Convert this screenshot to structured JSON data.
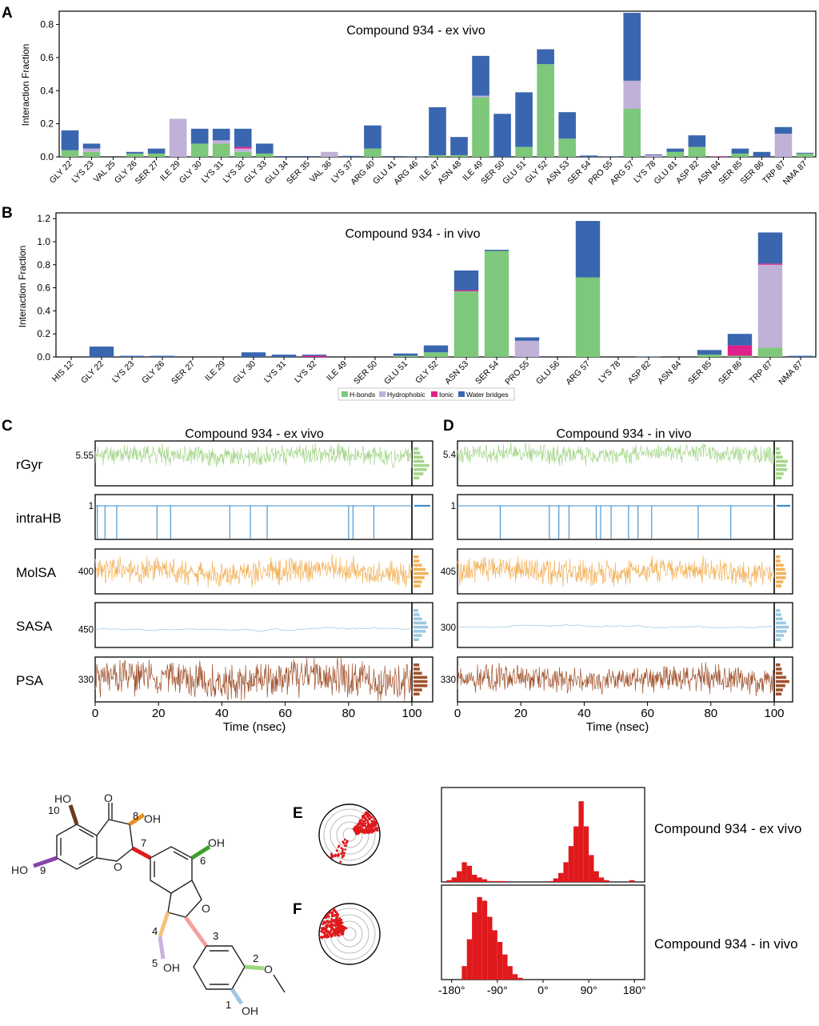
{
  "panel_letters": [
    "A",
    "B",
    "C",
    "D",
    "E",
    "F"
  ],
  "colors": {
    "hbonds": "#7dc87b",
    "hydrophobic": "#c0b1d8",
    "ionic": "#e0208a",
    "water": "#3a66b0",
    "rgyr": "#a5d68a",
    "intrahb": "#3d8fcc",
    "molsa": "#f2b25a",
    "sasa": "#9cc8e2",
    "psa": "#a0522d",
    "dihedral": "#e0191c"
  },
  "legend": {
    "items": [
      {
        "label": "H-bonds",
        "key": "hbonds"
      },
      {
        "label": "Hydrophobic",
        "key": "hydrophobic"
      },
      {
        "label": "Ionic",
        "key": "ionic"
      },
      {
        "label": "Water bridges",
        "key": "water"
      }
    ]
  },
  "chart_data": [
    {
      "id": "A",
      "type": "bar",
      "stacked": true,
      "title": "Compound 934 - ex vivo",
      "ylabel": "Interaction Fraction",
      "ylim": [
        0,
        0.88
      ],
      "yticks": [
        0.0,
        0.2,
        0.4,
        0.6,
        0.8
      ],
      "ytick_labels": [
        "0.0",
        "0.2",
        "0.4",
        "0.6",
        "0.8"
      ],
      "categories": [
        "GLY 22",
        "LYS 23",
        "VAL 25",
        "GLY 26",
        "SER 27",
        "ILE 29",
        "GLY 30",
        "LYS 31",
        "LYS 32",
        "GLY 33",
        "GLU 34",
        "SER 35",
        "VAL 36",
        "LYS 37",
        "ARG 40",
        "GLU 41",
        "ARG 46",
        "ILE 47",
        "ASN 48",
        "ILE 49",
        "SER 50",
        "GLU 51",
        "GLY 52",
        "ASN 53",
        "SER 54",
        "PRO 55",
        "ARG 57",
        "LYS 78",
        "GLU 81",
        "ASP 82",
        "ASN 84",
        "SER 85",
        "SER 86",
        "TRP 87",
        "NMA 87"
      ],
      "series": [
        {
          "name": "H-bonds",
          "values": [
            0.04,
            0.03,
            0,
            0.02,
            0.02,
            0,
            0.08,
            0.08,
            0.03,
            0.02,
            0,
            0,
            0,
            0,
            0.05,
            0,
            0,
            0.01,
            0.01,
            0.36,
            0,
            0.06,
            0.56,
            0.11,
            0,
            0,
            0.29,
            0,
            0.03,
            0.06,
            0,
            0.02,
            0,
            0,
            0.02
          ]
        },
        {
          "name": "Hydrophobic",
          "values": [
            0,
            0.02,
            0,
            0,
            0,
            0.23,
            0,
            0.02,
            0.02,
            0,
            0,
            0,
            0.03,
            0,
            0,
            0,
            0,
            0,
            0,
            0.01,
            0,
            0,
            0,
            0,
            0,
            0,
            0.17,
            0.01,
            0,
            0,
            0,
            0,
            0,
            0.14,
            0
          ]
        },
        {
          "name": "Ionic",
          "values": [
            0,
            0,
            0,
            0,
            0,
            0,
            0,
            0,
            0.01,
            0,
            0,
            0,
            0,
            0,
            0,
            0,
            0,
            0,
            0,
            0,
            0,
            0,
            0,
            0,
            0,
            0,
            0,
            0,
            0,
            0,
            0.003,
            0,
            0,
            0,
            0
          ]
        },
        {
          "name": "Water bridges",
          "values": [
            0.12,
            0.03,
            0,
            0.01,
            0.03,
            0,
            0.09,
            0.07,
            0.11,
            0.06,
            0.005,
            0.005,
            0,
            0.006,
            0.14,
            0.005,
            0.003,
            0.29,
            0.11,
            0.24,
            0.26,
            0.33,
            0.09,
            0.16,
            0.008,
            0.003,
            0.41,
            0.005,
            0.02,
            0.07,
            0,
            0.03,
            0.03,
            0.04,
            0.005
          ]
        }
      ]
    },
    {
      "id": "B",
      "type": "bar",
      "stacked": true,
      "title": "Compound 934 - in vivo",
      "ylabel": "Interaction Fraction",
      "ylim": [
        0,
        1.25
      ],
      "yticks": [
        0.0,
        0.2,
        0.4,
        0.6,
        0.8,
        1.0,
        1.2
      ],
      "ytick_labels": [
        "0.0",
        "0.2",
        "0.4",
        "0.6",
        "0.8",
        "1.0",
        "1.2"
      ],
      "categories": [
        "HIS 12",
        "GLY 22",
        "LYS 23",
        "GLY 26",
        "SER 27",
        "ILE 29",
        "GLY 30",
        "LYS 31",
        "LYS 32",
        "ILE 49",
        "SER 50",
        "GLU 51",
        "GLY 52",
        "ASN 53",
        "SER 54",
        "PRO 55",
        "GLU 56",
        "ARG 57",
        "LYS 78",
        "ASP 82",
        "ASN 84",
        "SER 85",
        "SER 86",
        "TRP 87",
        "NMA 87"
      ],
      "series": [
        {
          "name": "H-bonds",
          "values": [
            0,
            0,
            0,
            0,
            0,
            0,
            0,
            0,
            0,
            0,
            0,
            0.01,
            0.04,
            0.57,
            0.92,
            0,
            0,
            0.69,
            0,
            0,
            0,
            0.02,
            0.01,
            0.08,
            0
          ]
        },
        {
          "name": "Hydrophobic",
          "values": [
            0,
            0,
            0,
            0,
            0,
            0,
            0,
            0,
            0,
            0,
            0,
            0,
            0,
            0,
            0,
            0.14,
            0,
            0,
            0,
            0,
            0,
            0,
            0,
            0.72,
            0
          ]
        },
        {
          "name": "Ionic",
          "values": [
            0,
            0,
            0,
            0,
            0,
            0,
            0,
            0,
            0.01,
            0,
            0,
            0,
            0,
            0.01,
            0,
            0,
            0,
            0,
            0,
            0,
            0,
            0,
            0.09,
            0.01,
            0
          ]
        },
        {
          "name": "Water bridges",
          "values": [
            0,
            0.09,
            0.01,
            0.01,
            0,
            0,
            0.04,
            0.02,
            0.01,
            0,
            0,
            0.02,
            0.06,
            0.17,
            0.01,
            0.03,
            0,
            0.49,
            0,
            0.003,
            0,
            0.04,
            0.1,
            0.27,
            0.01
          ]
        }
      ]
    },
    {
      "id": "C",
      "type": "line",
      "title": "Compound 934 - ex vivo",
      "xlabel": "Time (nsec)",
      "xlim": [
        0,
        100
      ],
      "xticks": [
        0,
        20,
        40,
        60,
        80,
        100
      ],
      "rows": [
        {
          "name": "rGyr",
          "key": "rgyr",
          "tick": "5.55",
          "base": 0.32,
          "amp": 0.16,
          "seed": 11,
          "kind": "noise"
        },
        {
          "name": "intraHB",
          "key": "intrahb",
          "tick": "1",
          "base": 0.25,
          "amp": 0,
          "seed": 0,
          "kind": "spikes",
          "events": [
            0.7,
            3.1,
            6.8,
            19.5,
            23.8,
            42.5,
            49.0,
            54.3,
            80.0,
            81.4,
            88.0
          ]
        },
        {
          "name": "MolSA",
          "key": "molsa",
          "tick": "400",
          "base": 0.5,
          "amp": 0.22,
          "seed": 23,
          "kind": "noise"
        },
        {
          "name": "SASA",
          "key": "sasa",
          "tick": "450",
          "base": 0.6,
          "amp": 0.1,
          "seed": 37,
          "kind": "walk"
        },
        {
          "name": "PSA",
          "key": "psa",
          "tick": "330",
          "base": 0.5,
          "amp": 0.3,
          "seed": 51,
          "kind": "noise"
        }
      ]
    },
    {
      "id": "D",
      "type": "line",
      "title": "Compound 934 - in vivo",
      "xlabel": "Time (nsec)",
      "xlim": [
        0,
        100
      ],
      "xticks": [
        0,
        20,
        40,
        60,
        80,
        100
      ],
      "rows": [
        {
          "name": "rGyr",
          "key": "rgyr",
          "tick": "5.4",
          "base": 0.3,
          "amp": 0.16,
          "seed": 13,
          "kind": "noise"
        },
        {
          "name": "intraHB",
          "key": "intrahb",
          "tick": "1",
          "base": 0.25,
          "amp": 0,
          "seed": 0,
          "kind": "spikes",
          "events": [
            13.5,
            29.0,
            32.0,
            35.2,
            43.8,
            45.2,
            48.5,
            54.0,
            57.0,
            61.3,
            76.0,
            86.3
          ]
        },
        {
          "name": "MolSA",
          "key": "molsa",
          "tick": "405",
          "base": 0.5,
          "amp": 0.22,
          "seed": 29,
          "kind": "noise"
        },
        {
          "name": "SASA",
          "key": "sasa",
          "tick": "300",
          "base": 0.55,
          "amp": 0.1,
          "seed": 41,
          "kind": "walk"
        },
        {
          "name": "PSA",
          "key": "psa",
          "tick": "330",
          "base": 0.5,
          "amp": 0.22,
          "seed": 59,
          "kind": "noise"
        }
      ]
    },
    {
      "id": "E",
      "type": "histogram",
      "title": "Compound 934 - ex vivo",
      "xlim": [
        -200,
        200
      ],
      "bin_centers": [
        -185,
        -175,
        -165,
        -155,
        -145,
        -135,
        -125,
        -115,
        -105,
        -95,
        -85,
        -75,
        15,
        25,
        35,
        45,
        55,
        65,
        75,
        85,
        95,
        105,
        115,
        125,
        175
      ],
      "counts": [
        0.02,
        0.05,
        0.12,
        0.22,
        0.18,
        0.08,
        0.05,
        0.03,
        0.01,
        0.01,
        0.01,
        0.01,
        0.01,
        0.04,
        0.1,
        0.22,
        0.4,
        0.62,
        0.9,
        0.62,
        0.3,
        0.12,
        0.05,
        0.02,
        0.02
      ]
    },
    {
      "id": "F",
      "type": "histogram",
      "title": "Compound 934 - in vivo",
      "xlim": [
        -200,
        200
      ],
      "xticks": [
        -180,
        -90,
        0,
        90,
        180
      ],
      "xtick_labels": [
        "-180°",
        "-90°",
        "0°",
        "90°",
        "180°"
      ],
      "bin_centers": [
        -155,
        -145,
        -135,
        -125,
        -115,
        -105,
        -95,
        -85,
        -75,
        -65,
        -55,
        -45
      ],
      "counts": [
        0.15,
        0.45,
        0.75,
        0.92,
        0.88,
        0.7,
        0.55,
        0.42,
        0.28,
        0.15,
        0.06,
        0.02
      ]
    }
  ],
  "molecule": {
    "labels": [
      "HO",
      "O",
      "OH",
      "HO",
      "O",
      "OH",
      "O",
      "OH",
      "O",
      "OH"
    ],
    "torsion_numbers": [
      "10",
      "8",
      "7",
      "6",
      "9",
      "4",
      "3",
      "5",
      "2",
      "1"
    ]
  }
}
